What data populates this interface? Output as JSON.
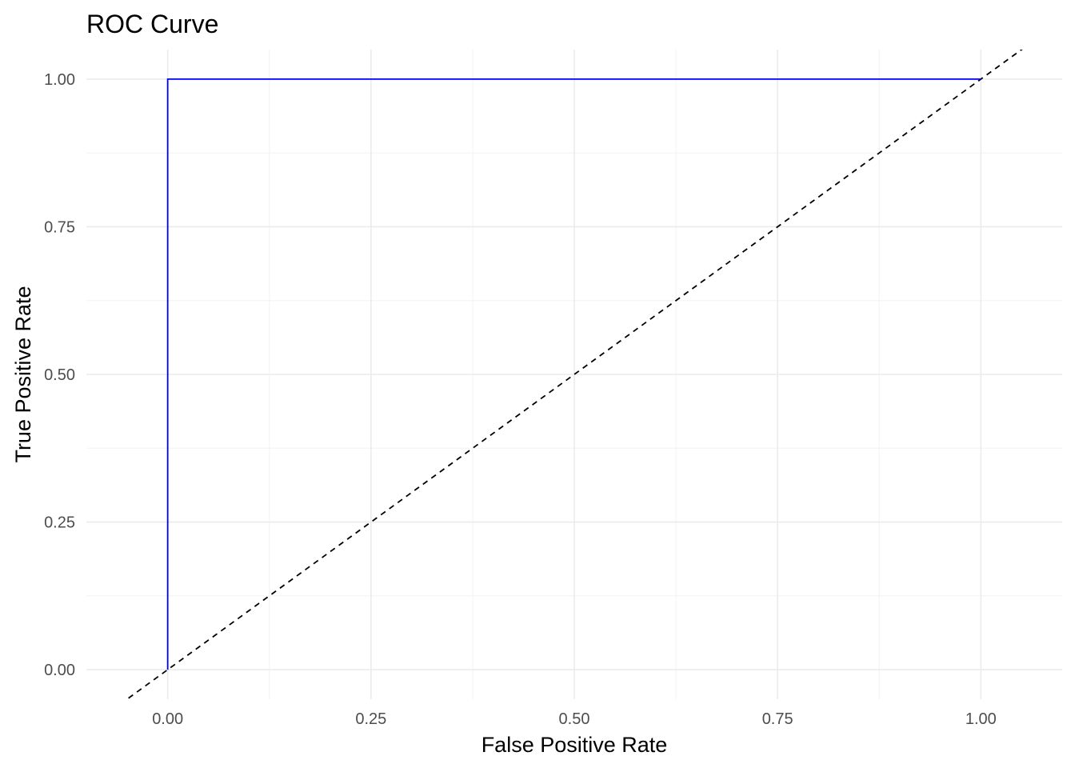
{
  "chart_data": {
    "type": "line",
    "title": "ROC Curve",
    "xlabel": "False Positive Rate",
    "ylabel": "True Positive Rate",
    "xlim": [
      -0.1,
      1.1
    ],
    "ylim": [
      -0.05,
      1.05
    ],
    "x_ticks": [
      "0.00",
      "0.25",
      "0.50",
      "0.75",
      "1.00"
    ],
    "y_ticks": [
      "0.00",
      "0.25",
      "0.50",
      "0.75",
      "1.00"
    ],
    "grid": true,
    "series": [
      {
        "color": "#0000ff",
        "style": "solid",
        "x": [
          0,
          0,
          1
        ],
        "y": [
          0,
          1,
          1
        ]
      },
      {
        "color": "#000000",
        "style": "dashed",
        "x": [
          -0.1,
          1.1
        ],
        "y": [
          -0.1,
          1.1
        ]
      }
    ]
  }
}
